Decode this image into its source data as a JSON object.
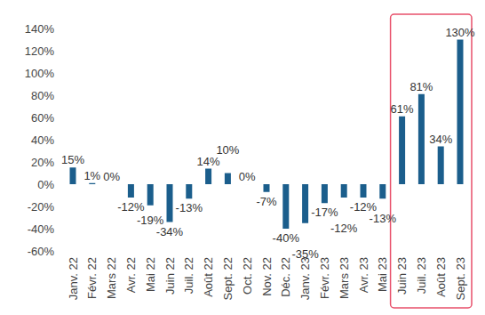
{
  "chart_data": {
    "type": "bar",
    "categories": [
      "Janv. 22",
      "Févr. 22",
      "Mars 22",
      "Avr. 22",
      "Mai 22",
      "Juin 22",
      "Juil. 22",
      "Août 22",
      "Sept. 22",
      "Oct. 22",
      "Nov. 22",
      "Déc. 22",
      "Janv. 23",
      "Févr. 23",
      "Mars 23",
      "Avr. 23",
      "Mai 23",
      "Juin 23",
      "Juil. 23",
      "Août 23",
      "Sept. 23"
    ],
    "values": [
      15,
      1,
      0,
      -12,
      -19,
      -34,
      -13,
      14,
      10,
      0,
      -7,
      -40,
      -35,
      -17,
      -12,
      -12,
      -13,
      61,
      81,
      34,
      130
    ],
    "value_labels": [
      "15%",
      "1%",
      "0%",
      "-12%",
      "-19%",
      "-34%",
      "-13%",
      "14%",
      "10%",
      "0%",
      "-7%",
      "-40%",
      "-35%",
      "-17%",
      "-12%",
      "-12%",
      "-13%",
      "61%",
      "81%",
      "34%",
      "130%"
    ],
    "color": "#1b5e8c",
    "ylim": [
      -60,
      140
    ],
    "yticks": [
      {
        "value": -60,
        "label": "-60%"
      },
      {
        "value": -40,
        "label": "-40%"
      },
      {
        "value": -20,
        "label": "-20%"
      },
      {
        "value": 0,
        "label": "0%"
      },
      {
        "value": 20,
        "label": "20%"
      },
      {
        "value": 40,
        "label": "40%"
      },
      {
        "value": 60,
        "label": "60%"
      },
      {
        "value": 80,
        "label": "80%"
      },
      {
        "value": 100,
        "label": "100%"
      },
      {
        "value": 120,
        "label": "120%"
      },
      {
        "value": 140,
        "label": "140%"
      }
    ],
    "grid": false,
    "data_labels": true
  }
}
